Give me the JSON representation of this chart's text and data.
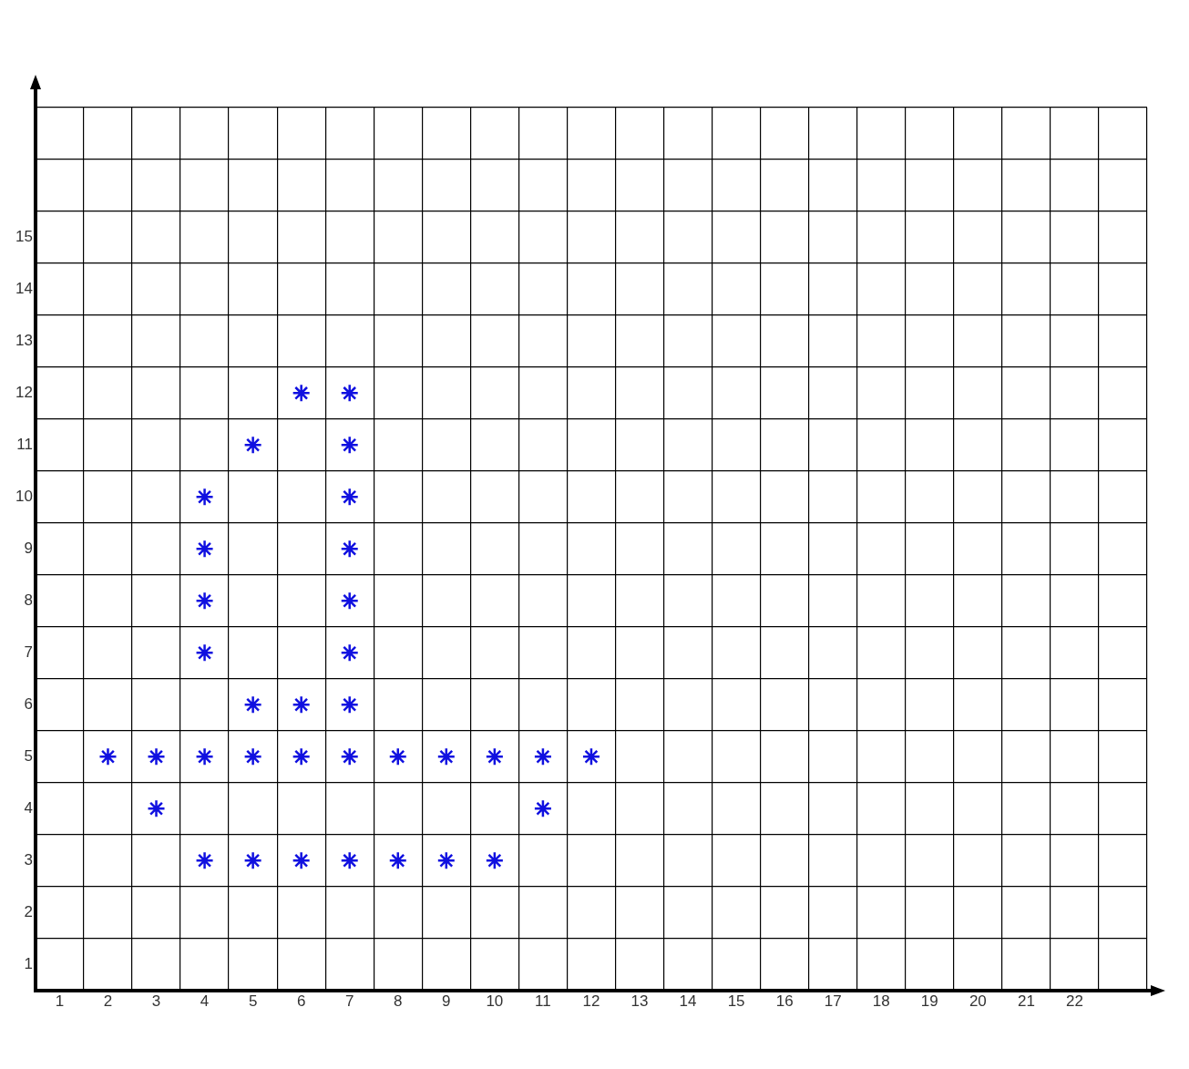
{
  "chart_data": {
    "type": "scatter",
    "marker": "cross",
    "grid": true,
    "x": [
      2,
      3,
      4,
      5,
      6,
      7,
      8,
      9,
      10,
      11,
      12,
      3,
      11,
      4,
      5,
      6,
      7,
      8,
      9,
      10,
      5,
      6,
      7,
      4,
      7,
      4,
      7,
      4,
      7,
      4,
      7,
      5,
      7,
      6,
      7
    ],
    "series": [
      {
        "color": "#1010e0",
        "values": [
          5,
          5,
          5,
          5,
          5,
          5,
          5,
          5,
          5,
          5,
          5,
          4,
          4,
          3,
          3,
          3,
          3,
          3,
          3,
          3,
          6,
          6,
          6,
          7,
          7,
          8,
          8,
          9,
          9,
          10,
          10,
          11,
          11,
          12,
          12
        ]
      }
    ],
    "xlim": [
      0.5,
      23.5
    ],
    "xticks": [
      {
        "value": 0.5,
        "label": null
      },
      1,
      {
        "value": 1.5,
        "label": null
      },
      2,
      {
        "value": 2.5,
        "label": null
      },
      3,
      {
        "value": 3.5,
        "label": null
      },
      4,
      {
        "value": 4.5,
        "label": null
      },
      5,
      {
        "value": 5.5,
        "label": null
      },
      6,
      {
        "value": 6.5,
        "label": null
      },
      7,
      {
        "value": 7.5,
        "label": null
      },
      8,
      {
        "value": 8.5,
        "label": null
      },
      9,
      {
        "value": 9.5,
        "label": null
      },
      10,
      {
        "value": 10.5,
        "label": null
      },
      11,
      {
        "value": 11.5,
        "label": null
      },
      12,
      {
        "value": 12.5,
        "label": null
      },
      13,
      {
        "value": 13.5,
        "label": null
      },
      14,
      {
        "value": 14.5,
        "label": null
      },
      15,
      {
        "value": 15.5,
        "label": null
      },
      16,
      {
        "value": 16.5,
        "label": null
      },
      17,
      {
        "value": 17.5,
        "label": null
      },
      18,
      {
        "value": 18.5,
        "label": null
      },
      19,
      {
        "value": 19.5,
        "label": null
      },
      20,
      {
        "value": 20.5,
        "label": null
      },
      21,
      {
        "value": 21.5,
        "label": null
      },
      22,
      {
        "value": 22.5,
        "label": null
      },
      {
        "value": 23.5,
        "label": null
      }
    ],
    "ylim": [
      0.5,
      17.5
    ],
    "yticks": [
      {
        "value": 0.5,
        "label": null
      },
      1,
      {
        "value": 1.5,
        "label": null
      },
      2,
      {
        "value": 2.5,
        "label": null
      },
      3,
      {
        "value": 3.5,
        "label": null
      },
      4,
      {
        "value": 4.5,
        "label": null
      },
      5,
      {
        "value": 5.5,
        "label": null
      },
      6,
      {
        "value": 6.5,
        "label": null
      },
      7,
      {
        "value": 7.5,
        "label": null
      },
      8,
      {
        "value": 8.5,
        "label": null
      },
      9,
      {
        "value": 9.5,
        "label": null
      },
      10,
      {
        "value": 10.5,
        "label": null
      },
      11,
      {
        "value": 11.5,
        "label": null
      },
      12,
      {
        "value": 12.5,
        "label": null
      },
      13,
      {
        "value": 13.5,
        "label": null
      },
      14,
      {
        "value": 14.5,
        "label": null
      },
      15,
      {
        "value": 15.5,
        "label": null
      },
      {
        "value": 16.5,
        "label": null
      },
      {
        "value": 17.5,
        "label": null
      }
    ]
  }
}
